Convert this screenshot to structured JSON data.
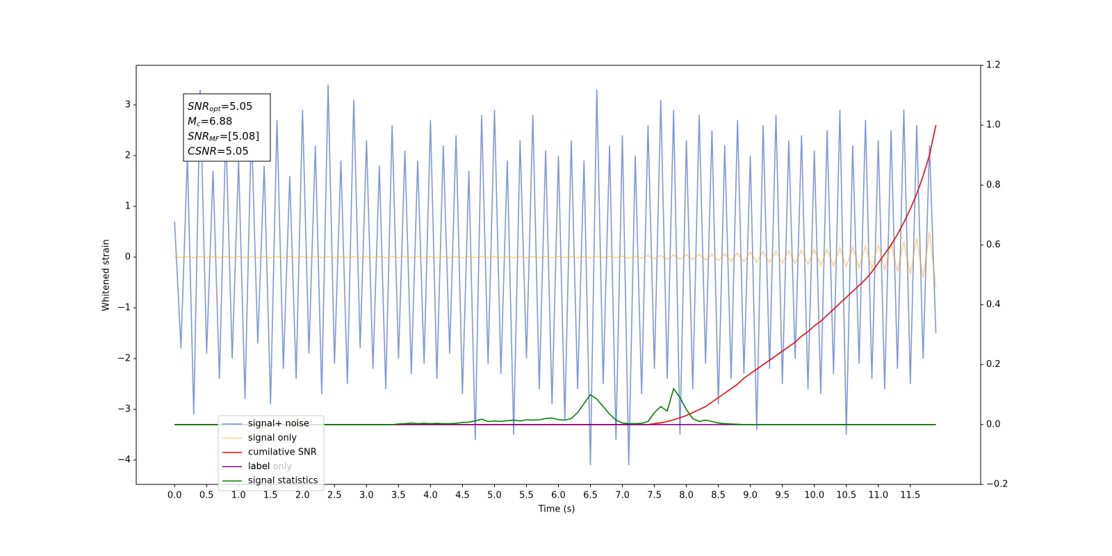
{
  "chart_data": {
    "type": "line",
    "xlabel": "Time (s)",
    "ylabel": "Whitened strain",
    "xlim": [
      -0.6,
      12.6
    ],
    "ylim": [
      -4.48,
      3.78
    ],
    "y2lim": [
      -0.2,
      1.2
    ],
    "xticks": [
      {
        "value": 0,
        "label": "0.0"
      },
      0.5,
      {
        "value": 1,
        "label": "1.0"
      },
      1.5,
      {
        "value": 2,
        "label": "2.0"
      },
      2.5,
      {
        "value": 3,
        "label": "3.0"
      },
      3.5,
      {
        "value": 4,
        "label": "4.0"
      },
      4.5,
      {
        "value": 5,
        "label": "5.0"
      },
      5.5,
      {
        "value": 6,
        "label": "6.0"
      },
      6.5,
      {
        "value": 7,
        "label": "7.0"
      },
      7.5,
      {
        "value": 8,
        "label": "8.0"
      },
      8.5,
      {
        "value": 9,
        "label": "9.0"
      },
      9.5,
      {
        "value": 10,
        "label": "10.0"
      },
      10.5,
      {
        "value": 11,
        "label": "11.0"
      },
      11.5
    ],
    "yticks": [
      {
        "value": -4,
        "label": "−4"
      },
      {
        "value": -3,
        "label": "−3"
      },
      {
        "value": -2,
        "label": "−2"
      },
      {
        "value": -1,
        "label": "−1"
      },
      0,
      1,
      2,
      3
    ],
    "y2ticks": [
      {
        "value": -0.2,
        "label": "−0.2"
      },
      {
        "value": 0,
        "label": "0.0"
      },
      0.2,
      0.4,
      0.6,
      0.8,
      {
        "value": 1,
        "label": "1.0"
      },
      1.2
    ],
    "legend": "lower left",
    "annotation_box": [
      {
        "name": "SNR",
        "sub": "opt",
        "text": "=5.05"
      },
      {
        "name": "M",
        "sub": "c",
        "text": "=6.88"
      },
      {
        "name": "SNR",
        "sub": "MF",
        "text": "=[5.08]"
      },
      {
        "name": "CSNR",
        "sub": "",
        "text": "=5.05"
      }
    ],
    "ghost_labels": [
      "label only"
    ],
    "x": [
      0,
      0.1,
      0.2,
      0.3,
      0.4,
      0.5,
      0.6,
      0.7,
      0.8,
      0.9,
      1,
      1.1,
      1.2,
      1.3,
      1.4,
      1.5,
      1.6,
      1.7,
      1.8,
      1.9,
      2,
      2.1,
      2.2,
      2.3,
      2.4,
      2.5,
      2.6,
      2.7,
      2.8,
      2.9,
      3,
      3.1,
      3.2,
      3.3,
      3.4,
      3.5,
      3.6,
      3.7,
      3.8,
      3.9,
      4,
      4.1,
      4.2,
      4.3,
      4.4,
      4.5,
      4.6,
      4.7,
      4.8,
      4.9,
      5,
      5.1,
      5.2,
      5.3,
      5.4,
      5.5,
      5.6,
      5.7,
      5.8,
      5.9,
      6,
      6.1,
      6.2,
      6.3,
      6.4,
      6.5,
      6.6,
      6.7,
      6.8,
      6.9,
      7,
      7.1,
      7.2,
      7.3,
      7.4,
      7.5,
      7.6,
      7.7,
      7.8,
      7.9,
      8,
      8.1,
      8.2,
      8.3,
      8.4,
      8.5,
      8.6,
      8.7,
      8.8,
      8.9,
      9,
      9.1,
      9.2,
      9.3,
      9.4,
      9.5,
      9.6,
      9.7,
      9.8,
      9.9,
      10,
      10.1,
      10.2,
      10.3,
      10.4,
      10.5,
      10.6,
      10.7,
      10.8,
      10.9,
      11,
      11.1,
      11.2,
      11.3,
      11.4,
      11.5,
      11.6,
      11.7,
      11.8,
      11.9
    ],
    "series": [
      {
        "name": "signal+ noise",
        "color": "royalblue",
        "alpha": 0.7,
        "axis": "y",
        "values": [
          0.7,
          -1.8,
          2.0,
          -3.1,
          3.3,
          -1.9,
          1.7,
          -2.4,
          2.5,
          -2.0,
          1.9,
          -2.8,
          2.6,
          -1.7,
          1.8,
          -2.9,
          2.7,
          -2.2,
          1.6,
          -2.4,
          2.9,
          -1.9,
          2.2,
          -2.7,
          3.4,
          -2.1,
          1.9,
          -2.5,
          3.1,
          -1.8,
          2.3,
          -2.2,
          1.8,
          -2.6,
          2.6,
          -2.0,
          2.1,
          -2.3,
          1.9,
          -2.1,
          2.7,
          -2.4,
          2.2,
          -1.9,
          2.4,
          -2.7,
          1.7,
          -3.6,
          2.8,
          -2.1,
          2.9,
          -2.3,
          1.9,
          -3.5,
          2.3,
          -2.0,
          2.8,
          -2.6,
          2.1,
          -2.9,
          2.0,
          -3.2,
          2.3,
          -2.6,
          1.9,
          -4.1,
          3.3,
          -2.5,
          2.2,
          -3.6,
          2.4,
          -4.1,
          2.0,
          -2.7,
          2.6,
          -2.2,
          3.1,
          -2.4,
          2.9,
          -3.5,
          2.3,
          -2.6,
          2.8,
          -2.1,
          2.5,
          -2.9,
          2.2,
          -2.4,
          2.7,
          -2.3,
          2.0,
          -3.4,
          2.6,
          -2.2,
          2.8,
          -2.5,
          2.3,
          -2.0,
          2.4,
          -2.6,
          2.1,
          -2.7,
          2.5,
          -2.3,
          2.9,
          -3.5,
          2.2,
          -2.1,
          2.7,
          -2.4,
          2.3,
          -2.6,
          2.5,
          -2.2,
          2.9,
          -2.5,
          2.6,
          -2.0,
          2.2,
          -1.5
        ]
      },
      {
        "name": "signal only",
        "color": "orange",
        "alpha": 0.5,
        "axis": "y",
        "values": [
          0.01,
          -0.01,
          0.01,
          -0.01,
          0.01,
          -0.01,
          0.01,
          -0.01,
          0.01,
          -0.01,
          0.01,
          -0.01,
          0.01,
          -0.01,
          0.01,
          -0.01,
          0.01,
          -0.01,
          0.01,
          -0.01,
          0.01,
          -0.01,
          0.01,
          -0.01,
          0.01,
          -0.01,
          0.01,
          -0.01,
          0.01,
          -0.01,
          0.01,
          -0.01,
          0.01,
          -0.01,
          0.01,
          -0.01,
          0.01,
          -0.01,
          0.01,
          -0.01,
          0.01,
          -0.01,
          0.01,
          -0.01,
          0.01,
          -0.01,
          0.01,
          -0.01,
          0.01,
          -0.01,
          0.01,
          -0.01,
          0.01,
          -0.01,
          0.01,
          -0.01,
          0.01,
          -0.01,
          0.01,
          -0.01,
          0.01,
          -0.01,
          0.01,
          -0.01,
          0.01,
          -0.01,
          0.01,
          -0.01,
          0.01,
          -0.01,
          0.02,
          -0.02,
          0.02,
          -0.02,
          0.03,
          -0.03,
          0.03,
          -0.04,
          0.04,
          -0.04,
          0.05,
          -0.05,
          0.06,
          -0.06,
          0.06,
          -0.07,
          0.07,
          -0.08,
          0.08,
          -0.09,
          0.1,
          -0.1,
          0.11,
          -0.11,
          0.12,
          -0.12,
          0.13,
          -0.13,
          0.14,
          -0.14,
          0.15,
          -0.16,
          0.16,
          -0.17,
          0.18,
          -0.19,
          0.2,
          -0.21,
          0.22,
          -0.23,
          0.25,
          -0.26,
          0.28,
          -0.29,
          0.31,
          -0.34,
          0.37,
          -0.41,
          0.5,
          -0.6
        ]
      },
      {
        "name": "cumilative SNR",
        "color": "red",
        "alpha": 1,
        "axis": "y2",
        "values": [
          0,
          0,
          0,
          0,
          0,
          0,
          0,
          0,
          0,
          0,
          0,
          0,
          0,
          0,
          0,
          0,
          0,
          0,
          0,
          0,
          0,
          0,
          0,
          0,
          0,
          0,
          0,
          0,
          0,
          0,
          0,
          0,
          0,
          0,
          0,
          0,
          0,
          0,
          0,
          0,
          0,
          0,
          0,
          0,
          0,
          0,
          0,
          0,
          0,
          0,
          0,
          0,
          0,
          0,
          0,
          0,
          0,
          0,
          0,
          0,
          0,
          0,
          0,
          0,
          0,
          0,
          0,
          0,
          0,
          0,
          0,
          0,
          0,
          0,
          0,
          0.003,
          0.006,
          0.01,
          0.016,
          0.023,
          0.03,
          0.04,
          0.05,
          0.06,
          0.075,
          0.09,
          0.105,
          0.12,
          0.135,
          0.155,
          0.17,
          0.185,
          0.2,
          0.215,
          0.23,
          0.245,
          0.26,
          0.275,
          0.295,
          0.31,
          0.33,
          0.345,
          0.365,
          0.385,
          0.405,
          0.425,
          0.445,
          0.465,
          0.485,
          0.51,
          0.54,
          0.57,
          0.6,
          0.635,
          0.675,
          0.72,
          0.77,
          0.83,
          0.9,
          1.0
        ]
      },
      {
        "name": "label",
        "color": "purple",
        "alpha": 1,
        "axis": "y2",
        "values": [
          0,
          0,
          0,
          0,
          0,
          0,
          0,
          0,
          0,
          0,
          0,
          0,
          0,
          0,
          0,
          0,
          0,
          0,
          0,
          0,
          0,
          0,
          0,
          0,
          0,
          0,
          0,
          0,
          0,
          0,
          0,
          0,
          0,
          0,
          0,
          0,
          0,
          0,
          0,
          0,
          0,
          0,
          0,
          0,
          0,
          0,
          0,
          0,
          0,
          0,
          0,
          0,
          0,
          0,
          0,
          0,
          0,
          0,
          0,
          0,
          0,
          0,
          0,
          0,
          0,
          0,
          0,
          0,
          0,
          0,
          0,
          0,
          0,
          0,
          0,
          0,
          0,
          0,
          0,
          0,
          0,
          0,
          0,
          0,
          0,
          0,
          0,
          0,
          0,
          0,
          0,
          0,
          0,
          0,
          0,
          0,
          0,
          0,
          0,
          0,
          0,
          0,
          0,
          0,
          0,
          0,
          0,
          0,
          0,
          0,
          0,
          0,
          0,
          0,
          0,
          0,
          0,
          0,
          0,
          0
        ]
      },
      {
        "name": "signal statistics",
        "color": "green",
        "alpha": 1,
        "axis": "y2",
        "values": [
          0,
          0,
          0,
          0,
          0,
          0,
          0,
          0,
          0,
          0,
          0,
          0,
          0,
          0,
          0,
          0,
          0,
          0,
          0,
          0,
          0,
          0,
          0,
          0,
          0,
          0,
          0,
          0,
          0,
          0,
          0,
          0,
          0,
          0,
          0,
          0.002,
          0.003,
          0.005,
          0.003,
          0.004,
          0.003,
          0.004,
          0.003,
          0.003,
          0.004,
          0.007,
          0.008,
          0.012,
          0.018,
          0.01,
          0.012,
          0.01,
          0.013,
          0.015,
          0.012,
          0.016,
          0.015,
          0.016,
          0.02,
          0.022,
          0.016,
          0.015,
          0.02,
          0.04,
          0.07,
          0.1,
          0.085,
          0.06,
          0.035,
          0.015,
          0.005,
          0.003,
          0.003,
          0.004,
          0.01,
          0.04,
          0.06,
          0.045,
          0.12,
          0.09,
          0.05,
          0.02,
          0.01,
          0.015,
          0.01,
          0.005,
          0.003,
          0.002,
          0.001,
          0,
          0,
          0,
          0,
          0,
          0,
          0,
          0,
          0,
          0,
          0,
          0,
          0,
          0,
          0,
          0,
          0,
          0,
          0,
          0,
          0,
          0,
          0,
          0,
          0,
          0,
          0,
          0,
          0,
          0,
          0
        ]
      }
    ]
  }
}
